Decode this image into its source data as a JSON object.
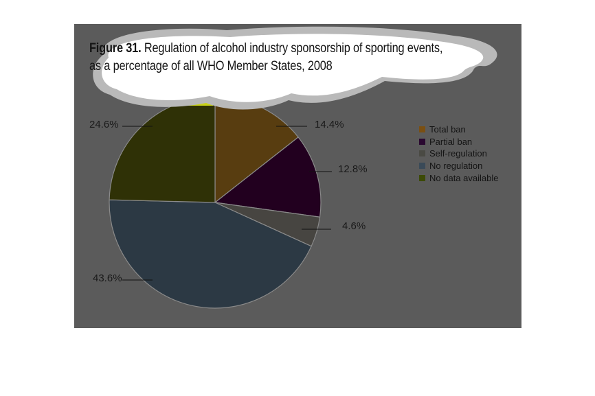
{
  "figure": {
    "label": "Figure 31.",
    "title_line1": "Regulation of alcohol industry sponsorship of sporting events,",
    "title_line2": "as a percentage of all WHO Member States, 2008"
  },
  "colors": {
    "panel": "#5b5b5b",
    "callout": "#ffffff",
    "callout_shadow": "#b9b9b9"
  },
  "chart_data": {
    "type": "pie",
    "start_angle_deg": 0,
    "direction": "clockwise",
    "slices": [
      {
        "name": "Total ban",
        "value": 14.4,
        "label": "14.4%",
        "color": "#583d10"
      },
      {
        "name": "Partial ban",
        "value": 12.8,
        "label": "12.8%",
        "color": "#22001f"
      },
      {
        "name": "Self-regulation",
        "value": 4.6,
        "label": "4.6%",
        "color": "#474541"
      },
      {
        "name": "No regulation",
        "value": 43.6,
        "label": "43.6%",
        "color": "#2c3944"
      },
      {
        "name": "No data available",
        "value": 24.6,
        "label": "24.6%",
        "color": "#2f3106"
      }
    ],
    "legend": [
      {
        "label": "Total ban",
        "color": "#7a4f12"
      },
      {
        "label": "Partial ban",
        "color": "#2a0830"
      },
      {
        "label": "Self-regulation",
        "color": "#4a4a44"
      },
      {
        "label": "No regulation",
        "color": "#3a4a58"
      },
      {
        "label": "No data available",
        "color": "#3c4a06"
      }
    ],
    "legend_position": "right"
  }
}
